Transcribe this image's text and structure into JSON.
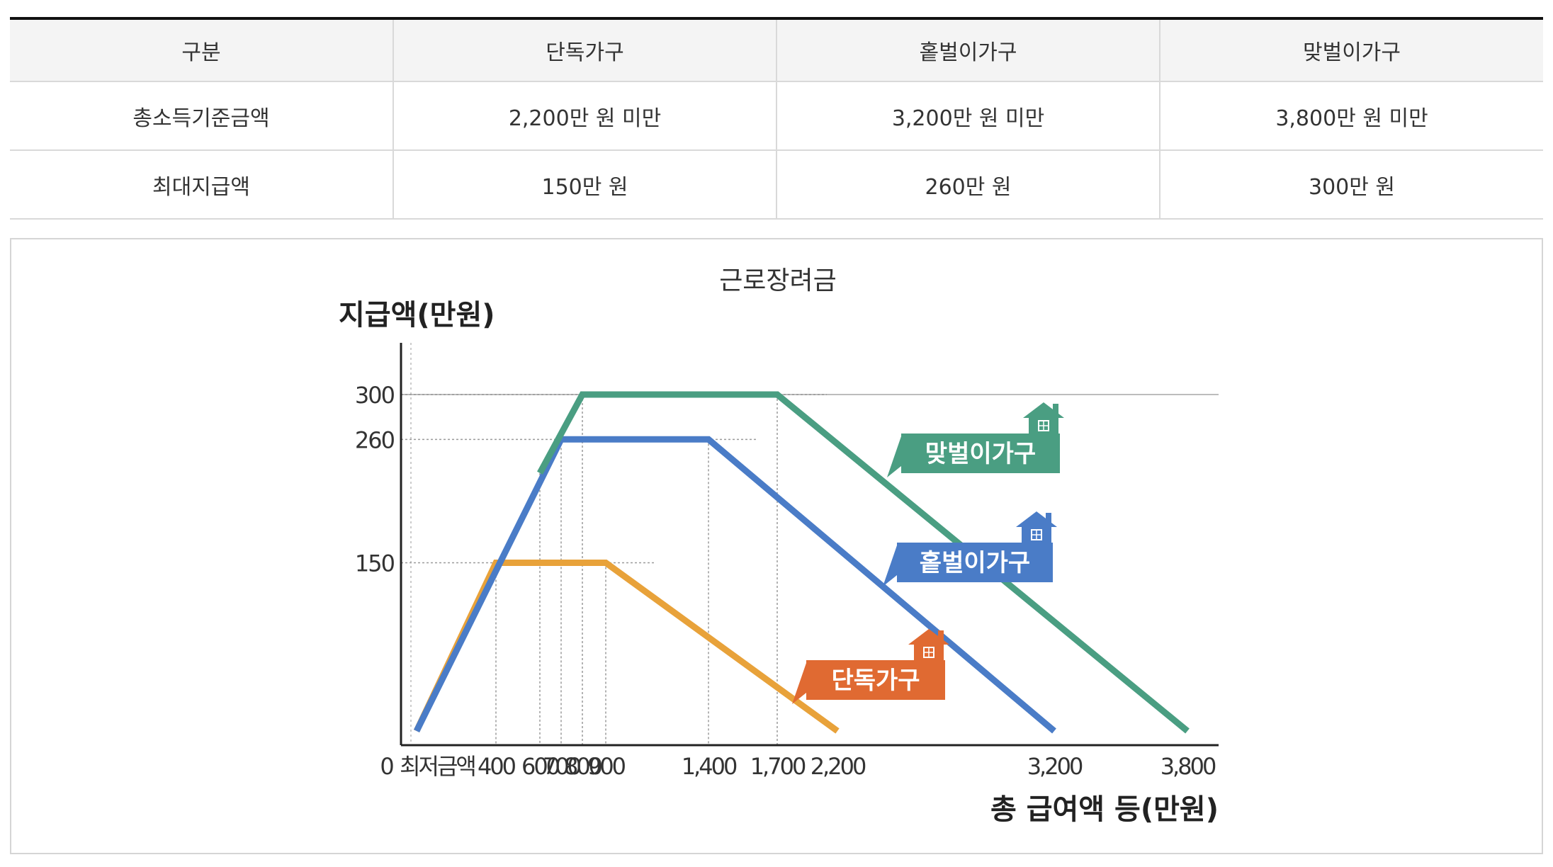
{
  "table": {
    "headers": [
      "구분",
      "단독가구",
      "홑벌이가구",
      "맞벌이가구"
    ],
    "rows": [
      [
        "총소득기준금액",
        "2,200만 원 미만",
        "3,200만 원 미만",
        "3,800만 원 미만"
      ],
      [
        "최대지급액",
        "150만 원",
        "260만 원",
        "300만 원"
      ]
    ]
  },
  "chart_data": {
    "type": "line",
    "title": "근로장려금",
    "ylabel": "지급액(만원)",
    "xlabel": "총 급여액 등(만원)",
    "xlim": [
      0,
      3800
    ],
    "ylim": [
      0,
      300
    ],
    "x_ticks": [
      "0",
      "최저금액",
      "400",
      "600",
      "700",
      "800",
      "900",
      "1,400",
      "1,700",
      "2,200",
      "3,200",
      "3,800"
    ],
    "y_ticks": [
      "300",
      "260",
      "150"
    ],
    "series": [
      {
        "name": "단독가구",
        "color": "#e8a23a",
        "label_bg": "#e06a32",
        "points": [
          [
            0,
            0
          ],
          [
            400,
            150
          ],
          [
            900,
            150
          ],
          [
            2200,
            0
          ]
        ]
      },
      {
        "name": "홑벌이가구",
        "color": "#4a7cc7",
        "label_bg": "#4a7cc7",
        "points": [
          [
            0,
            0
          ],
          [
            700,
            260
          ],
          [
            1400,
            260
          ],
          [
            3200,
            0
          ]
        ]
      },
      {
        "name": "맞벌이가구",
        "color": "#4a9e82",
        "label_bg": "#4a9e82",
        "points": [
          [
            600,
            230
          ],
          [
            800,
            300
          ],
          [
            1700,
            300
          ],
          [
            3800,
            0
          ]
        ]
      }
    ]
  }
}
